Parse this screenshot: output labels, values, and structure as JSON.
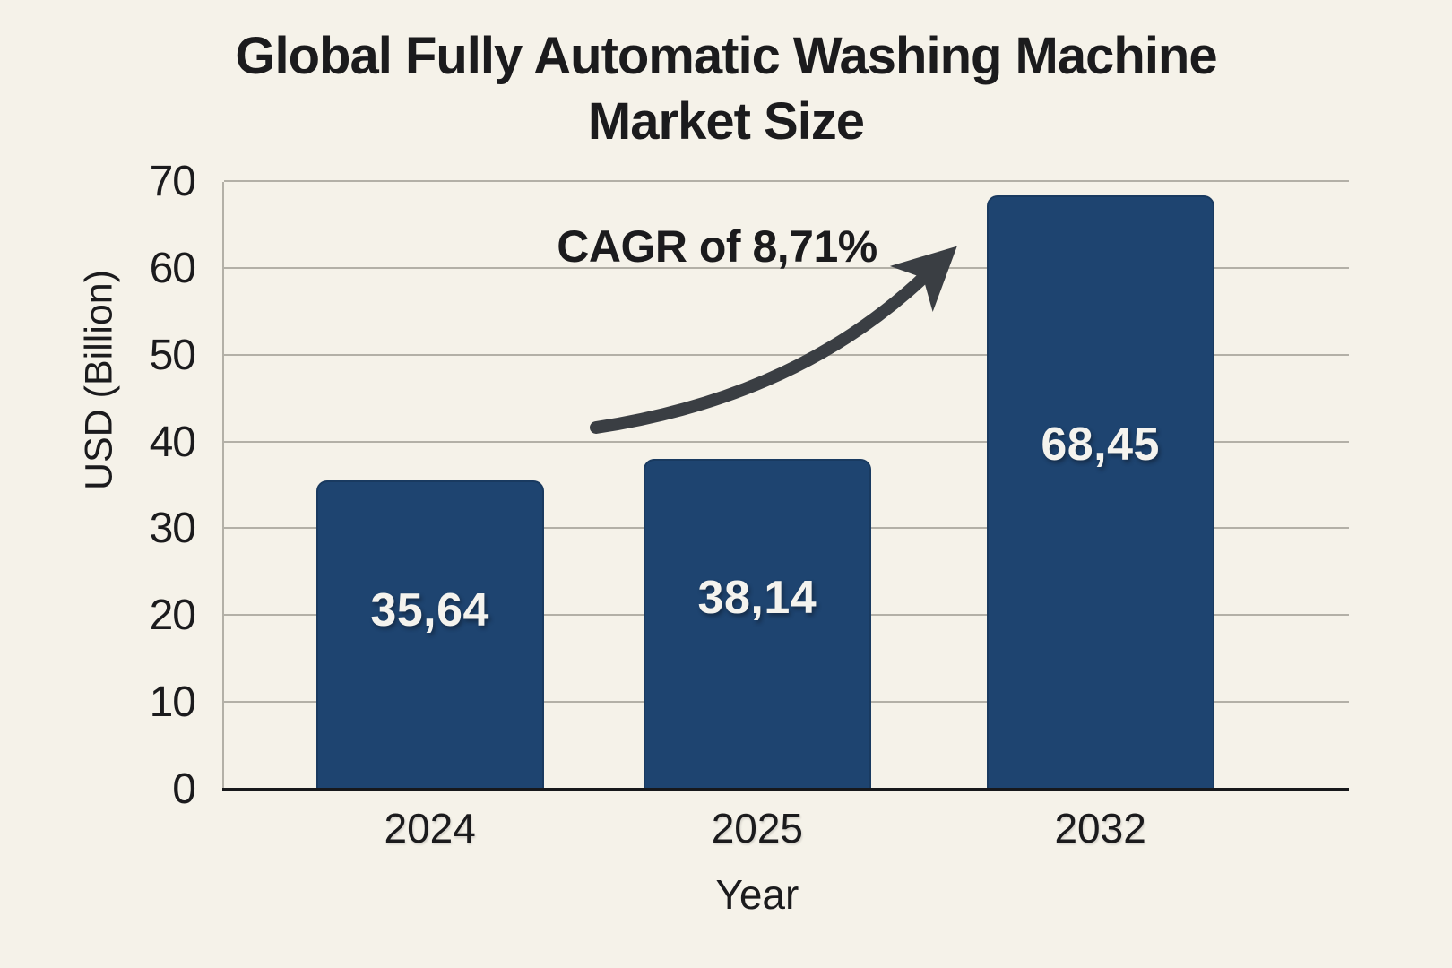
{
  "page": {
    "background": "#f5f2e9"
  },
  "title": {
    "line1": "Global Fully Automatic Washing Machine",
    "line2": "Market Size"
  },
  "chart_data": {
    "type": "bar",
    "title": "Global Fully Automatic Washing Machine Market Size",
    "categories": [
      "2024",
      "2025",
      "2032"
    ],
    "values": [
      35.64,
      38.14,
      68.45
    ],
    "value_labels": [
      "35,64",
      "38,14",
      "68,45"
    ],
    "xlabel": "Year",
    "ylabel": "USD (Billion)",
    "ylim": [
      0,
      70
    ],
    "yticks": [
      0,
      10,
      20,
      30,
      40,
      50,
      60,
      70
    ],
    "grid": true,
    "legend": false,
    "annotation": "CAGR of 8,71%",
    "bar_color": "#1e4470",
    "bar_label_color": "#f4f3ee",
    "arrow_color": "#3a3e43",
    "grid_color": "#b3b0a7",
    "axis_color": "#17181b",
    "text_color": "#1b1b1d",
    "background_color": "#f5f2e9"
  }
}
